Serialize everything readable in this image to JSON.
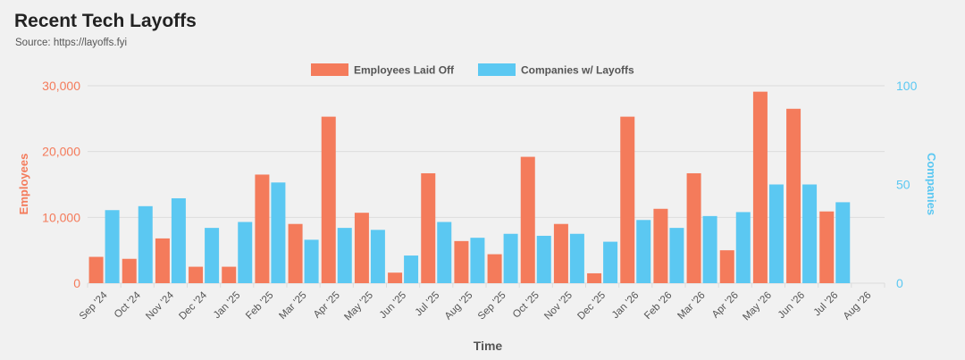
{
  "page": {
    "title": "Recent Tech Layoffs",
    "subtitle": "Source: https://layoffs.fyi"
  },
  "colors": {
    "employees": "#f47b5b",
    "companies": "#5bc8f2",
    "axis_text": "#555555",
    "grid": "#dcdcdc"
  },
  "chart_data": {
    "type": "bar",
    "xlabel": "Time",
    "ylabel_left": "Employees",
    "ylabel_right": "Companies",
    "ylim_left": [
      0,
      30000
    ],
    "ylim_right": [
      0,
      100
    ],
    "yticks_left": [
      "0",
      "10,000",
      "20,000",
      "30,000"
    ],
    "yticks_right": [
      "0",
      "50",
      "100"
    ],
    "legend_position": "top-center",
    "grid": true,
    "categories": [
      "Sep '24",
      "Oct '24",
      "Nov '24",
      "Dec '24",
      "Jan '25",
      "Feb '25",
      "Mar '25",
      "Apr '25",
      "May '25",
      "Jun '25",
      "Jul '25",
      "Aug '25",
      "Sep '25",
      "Oct '25",
      "Nov '25",
      "Dec '25",
      "Jan '26",
      "Feb '26",
      "Mar '26",
      "Apr '26",
      "May '26",
      "Jun '26",
      "Jul '26",
      "Aug '26"
    ],
    "series": [
      {
        "name": "Employees Laid Off",
        "axis": "left",
        "values": [
          4000,
          3700,
          6800,
          2500,
          2500,
          16500,
          9000,
          25300,
          10700,
          1600,
          16700,
          6400,
          4400,
          19200,
          9000,
          1500,
          25300,
          11300,
          16700,
          5000,
          29100,
          26500,
          10900,
          null
        ]
      },
      {
        "name": "Companies w/ Layoffs",
        "axis": "right",
        "values": [
          37,
          39,
          43,
          28,
          31,
          51,
          22,
          28,
          27,
          14,
          31,
          23,
          25,
          24,
          25,
          21,
          32,
          28,
          34,
          36,
          50,
          50,
          41,
          null
        ]
      }
    ]
  }
}
